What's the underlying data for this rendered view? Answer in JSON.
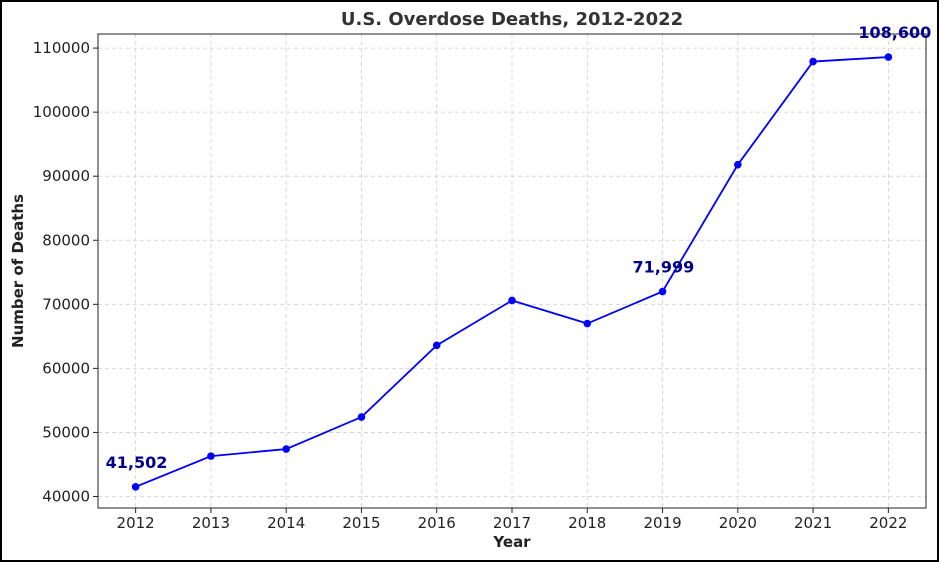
{
  "chart_data": {
    "type": "line",
    "title": "U.S. Overdose Deaths, 2012-2022",
    "xlabel": "Year",
    "ylabel": "Number of Deaths",
    "x": [
      2012,
      2013,
      2014,
      2015,
      2016,
      2017,
      2018,
      2019,
      2020,
      2021,
      2022
    ],
    "x_tick_labels": [
      "2012",
      "2013",
      "2014",
      "2015",
      "2016",
      "2017",
      "2018",
      "2019",
      "2020",
      "2021",
      "2022"
    ],
    "series": [
      {
        "values": [
          41502,
          46300,
          47400,
          52400,
          63600,
          70600,
          67000,
          71999,
          91800,
          107900,
          108600
        ],
        "color": "#0000ff"
      }
    ],
    "y_ticks": [
      40000,
      50000,
      60000,
      70000,
      80000,
      90000,
      100000,
      110000
    ],
    "y_tick_labels": [
      "40000",
      "50000",
      "60000",
      "70000",
      "80000",
      "90000",
      "100000",
      "110000"
    ],
    "ylim": [
      38200,
      112200
    ],
    "xlim": [
      2011.5,
      2022.5
    ],
    "grid": true,
    "annotations": [
      {
        "x": 2012,
        "y": 41502,
        "text": "41,502"
      },
      {
        "x": 2019,
        "y": 71999,
        "text": "71,999"
      },
      {
        "x": 2022,
        "y": 108600,
        "text": "108,600"
      }
    ]
  }
}
